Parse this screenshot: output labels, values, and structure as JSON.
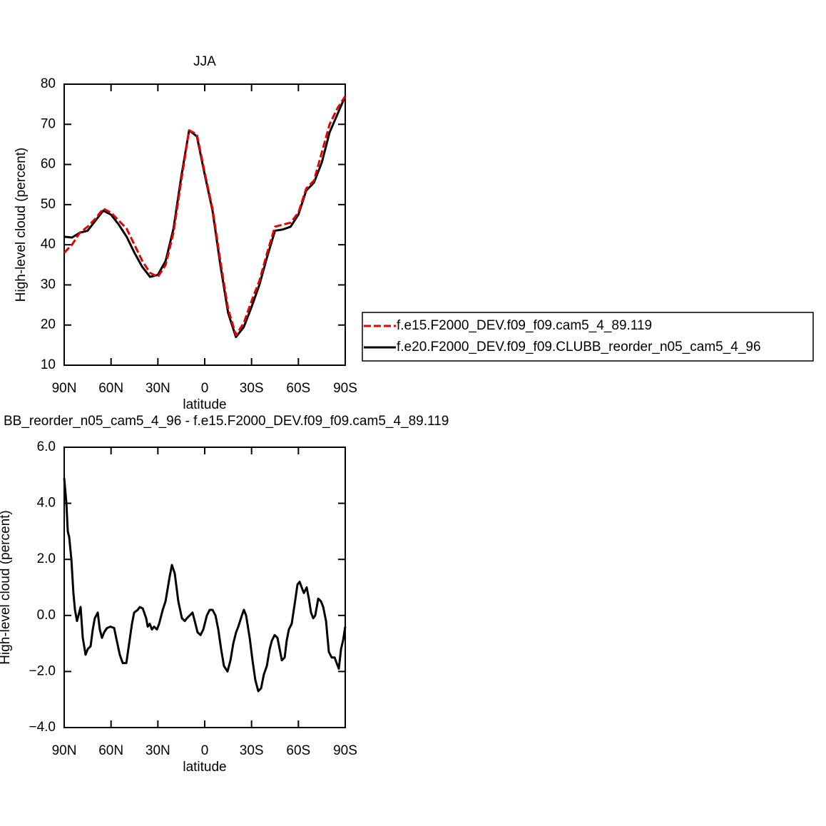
{
  "chart_data": [
    {
      "type": "line",
      "title": "JJA",
      "x_label": "latitude",
      "y_label": "High-level cloud (percent)",
      "x": [
        90,
        85,
        80,
        75,
        70,
        65,
        60,
        55,
        50,
        45,
        40,
        35,
        30,
        25,
        20,
        15,
        10,
        5,
        0,
        -5,
        -10,
        -15,
        -20,
        -25,
        -30,
        -35,
        -40,
        -45,
        -50,
        -55,
        -60,
        -65,
        -70,
        -75,
        -80,
        -85,
        -90
      ],
      "xlim": [
        90,
        -90
      ],
      "xticks": [
        {
          "value": 90,
          "label": "90N"
        },
        {
          "value": 60,
          "label": "60N"
        },
        {
          "value": 30,
          "label": "30N"
        },
        0,
        {
          "value": -30,
          "label": "30S"
        },
        {
          "value": -60,
          "label": "60S"
        },
        {
          "value": -90,
          "label": "90S"
        }
      ],
      "ylim": [
        10,
        80
      ],
      "yticks": [
        10,
        20,
        30,
        40,
        50,
        60,
        70,
        80
      ],
      "legend": "right",
      "series": [
        {
          "name": "f.e15.F2000_DEV.f09_f09.cam5_4_89.119",
          "color": "#e60000",
          "line_style": "dashed",
          "values": [
            38,
            40,
            43,
            44.5,
            46.5,
            49,
            48,
            46,
            44,
            40,
            36,
            33,
            32,
            35,
            43,
            56,
            68.5,
            67.5,
            58,
            49,
            36,
            24,
            17.5,
            20.5,
            26,
            31,
            38,
            44.5,
            45,
            45.5,
            48,
            54,
            56,
            63,
            70,
            74,
            77
          ]
        },
        {
          "name": "f.e20.F2000_DEV.f09_f09.CLUBB_reorder_n05_cam5_4_96",
          "color": "#000000",
          "line_style": "solid",
          "values": [
            42,
            41.8,
            43,
            43.5,
            46,
            48.5,
            47.5,
            45,
            42,
            38,
            34.5,
            32,
            32.5,
            36,
            44,
            57,
            68.5,
            67,
            57.5,
            48.5,
            35,
            23,
            17,
            19.5,
            24.5,
            30,
            37,
            43.5,
            43.8,
            44.5,
            47.5,
            53.5,
            55.5,
            60.5,
            68,
            72.5,
            77
          ]
        }
      ]
    },
    {
      "type": "line",
      "title": "BB_reorder_n05_cam5_4_96 - f.e15.F2000_DEV.f09_f09.cam5_4_89.119",
      "x_label": "latitude",
      "y_label": "High-level cloud (percent)",
      "x": [
        90,
        88.6,
        87.7,
        86.8,
        85.4,
        84.1,
        83.1,
        81.8,
        80.4,
        79.5,
        78.1,
        76.3,
        74.9,
        73.1,
        71.7,
        70.4,
        68.5,
        67.2,
        65.8,
        64.4,
        62.6,
        60.3,
        58.0,
        56.7,
        54.4,
        52.5,
        50.2,
        48.4,
        46.6,
        45.2,
        42.9,
        41.6,
        39.7,
        37.5,
        36.5,
        35.2,
        33.8,
        32.4,
        30.6,
        29.2,
        26.9,
        25.1,
        22.4,
        21.0,
        19.2,
        16.9,
        14.6,
        12.8,
        11.4,
        9.6,
        7.8,
        6.4,
        4.6,
        2.7,
        0.9,
        -1.4,
        -3.2,
        -5.0,
        -6.9,
        -8.7,
        -10.5,
        -12.3,
        -14.6,
        -16.5,
        -18.3,
        -20.1,
        -21.5,
        -23.8,
        -25.1,
        -26.5,
        -28.8,
        -30.6,
        -32.4,
        -34.3,
        -36.1,
        -37.9,
        -39.8,
        -41.6,
        -43.0,
        -44.8,
        -46.6,
        -48.0,
        -49.4,
        -51.2,
        -52.5,
        -53.9,
        -55.7,
        -57.6,
        -59.4,
        -60.8,
        -62.1,
        -63.5,
        -65.3,
        -66.7,
        -68.1,
        -69.5,
        -70.8,
        -72.7,
        -74.5,
        -75.9,
        -77.7,
        -79.5,
        -81.3,
        -83.2,
        -84.5,
        -85.9,
        -87.3,
        -88.6,
        -90
      ],
      "values": [
        4.9,
        4.0,
        3.0,
        2.8,
        2.0,
        0.8,
        0.2,
        -0.2,
        0.1,
        0.3,
        -0.8,
        -1.4,
        -1.2,
        -1.1,
        -0.5,
        -0.1,
        0.1,
        -0.5,
        -0.8,
        -0.6,
        -0.45,
        -0.4,
        -0.45,
        -0.8,
        -1.4,
        -1.7,
        -1.7,
        -1.0,
        -0.3,
        0.1,
        0.2,
        0.3,
        0.25,
        -0.1,
        -0.4,
        -0.3,
        -0.5,
        -0.4,
        -0.5,
        -0.3,
        0.2,
        0.5,
        1.4,
        1.8,
        1.5,
        0.5,
        -0.1,
        -0.2,
        -0.1,
        0.0,
        0.1,
        -0.2,
        -0.6,
        -0.7,
        -0.5,
        0.0,
        0.2,
        0.2,
        0.0,
        -0.5,
        -1.2,
        -1.8,
        -2.0,
        -1.6,
        -1.0,
        -0.6,
        -0.4,
        0.0,
        0.2,
        0.0,
        -0.8,
        -1.6,
        -2.3,
        -2.7,
        -2.6,
        -2.1,
        -1.8,
        -1.2,
        -0.9,
        -0.7,
        -0.8,
        -1.2,
        -1.6,
        -1.5,
        -0.9,
        -0.5,
        -0.3,
        0.4,
        1.1,
        1.2,
        1.0,
        0.8,
        1.0,
        0.6,
        0.1,
        -0.1,
        0.0,
        0.6,
        0.5,
        0.3,
        -0.2,
        -1.3,
        -1.5,
        -1.5,
        -1.7,
        -1.9,
        -1.2,
        -0.9,
        -0.4
      ],
      "color": "#000000",
      "line_style": "solid",
      "xlim": [
        90,
        -90
      ],
      "xticks": [
        {
          "value": 90,
          "label": "90N"
        },
        {
          "value": 60,
          "label": "60N"
        },
        {
          "value": 30,
          "label": "30N"
        },
        0,
        {
          "value": -30,
          "label": "30S"
        },
        {
          "value": -60,
          "label": "60S"
        },
        {
          "value": -90,
          "label": "90S"
        }
      ],
      "ylim": [
        -4,
        6
      ],
      "yticks": [
        {
          "value": -4,
          "label": "−4.0"
        },
        {
          "value": -2,
          "label": "−2.0"
        },
        {
          "value": 0,
          "label": "0.0"
        },
        {
          "value": 2,
          "label": "2.0"
        },
        {
          "value": 4,
          "label": "4.0"
        },
        {
          "value": 6,
          "label": "6.0"
        }
      ]
    }
  ]
}
